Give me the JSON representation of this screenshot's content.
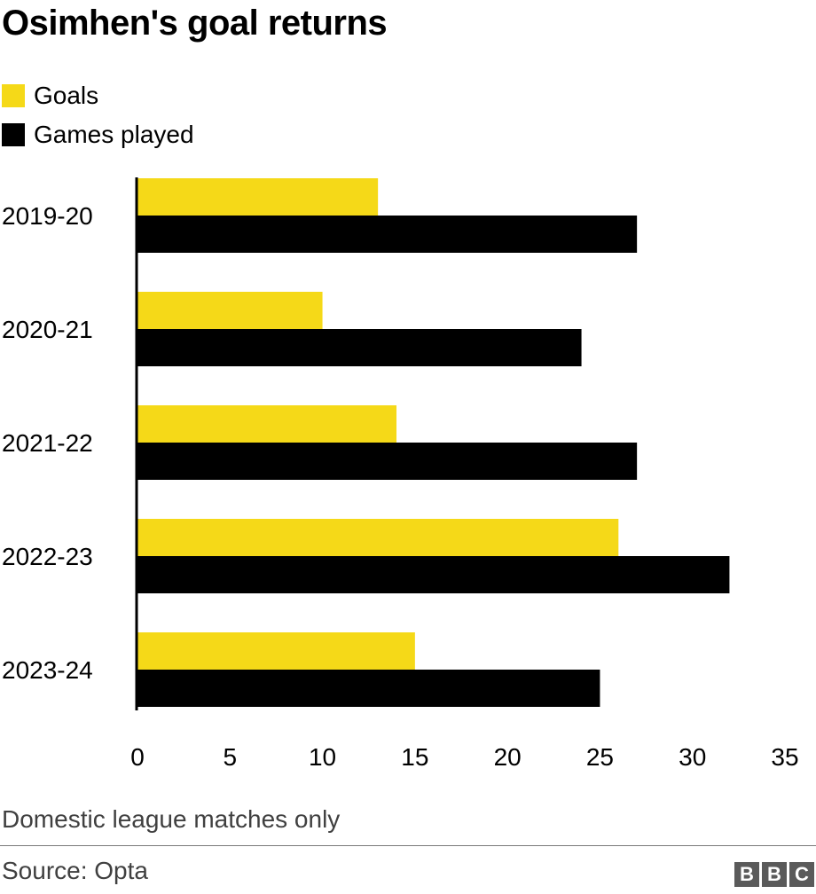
{
  "title": "Osimhen's goal returns",
  "legend": [
    {
      "label": "Goals",
      "color": "#f5d918"
    },
    {
      "label": "Games played",
      "color": "#000000"
    }
  ],
  "chart_data": {
    "type": "bar",
    "orientation": "horizontal",
    "categories": [
      "2019-20",
      "2020-21",
      "2021-22",
      "2022-23",
      "2023-24"
    ],
    "series": [
      {
        "name": "Goals",
        "color": "#f5d918",
        "values": [
          13,
          10,
          14,
          26,
          15
        ]
      },
      {
        "name": "Games played",
        "color": "#000000",
        "values": [
          27,
          24,
          27,
          32,
          25
        ]
      }
    ],
    "xlim": [
      0,
      35
    ],
    "xticks": [
      0,
      5,
      10,
      15,
      20,
      25,
      30,
      35
    ],
    "grid": false,
    "legend": "top-left"
  },
  "note": "Domestic league matches only",
  "source": "Source: Opta",
  "logo": [
    "B",
    "B",
    "C"
  ]
}
